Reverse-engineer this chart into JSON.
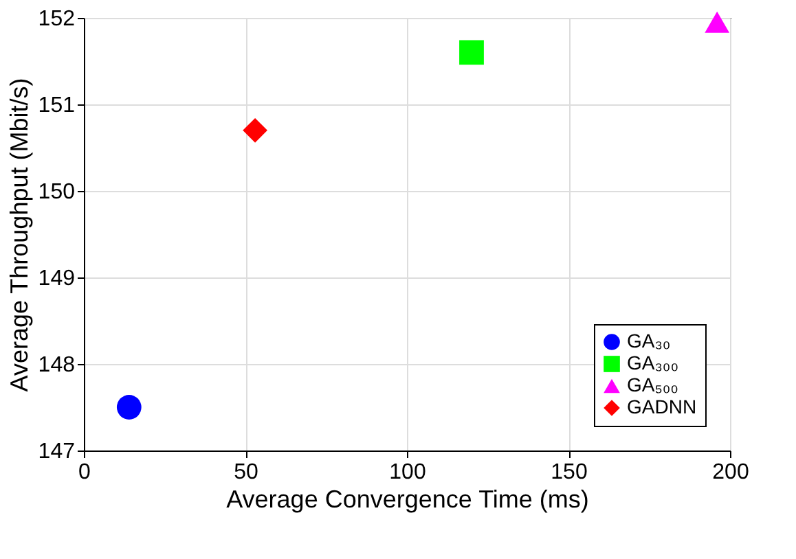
{
  "chart_data": {
    "type": "scatter",
    "xlabel": "Average Convergence Time (ms)",
    "ylabel": "Average Throughput (Mbit/s)",
    "series": [
      {
        "name": "GA₃₀",
        "color": "#0000ff",
        "marker": "circle",
        "x": [
          14
        ],
        "values": [
          147.5
        ]
      },
      {
        "name": "GA₃₀₀",
        "color": "#00ff00",
        "marker": "square",
        "x": [
          120
        ],
        "values": [
          151.6
        ]
      },
      {
        "name": "GA₅₀₀",
        "color": "#ff00ff",
        "marker": "triangle",
        "x": [
          196
        ],
        "values": [
          151.95
        ]
      },
      {
        "name": "GADNN",
        "color": "#ff0000",
        "marker": "diamond",
        "x": [
          53
        ],
        "values": [
          150.7
        ]
      }
    ],
    "xlim": [
      0,
      200
    ],
    "xticks": [
      0,
      50,
      100,
      150,
      200
    ],
    "ylim": [
      147,
      152
    ],
    "yticks": [
      147,
      148,
      149,
      150,
      151,
      152
    ],
    "grid": true,
    "legend": "bottom right"
  }
}
